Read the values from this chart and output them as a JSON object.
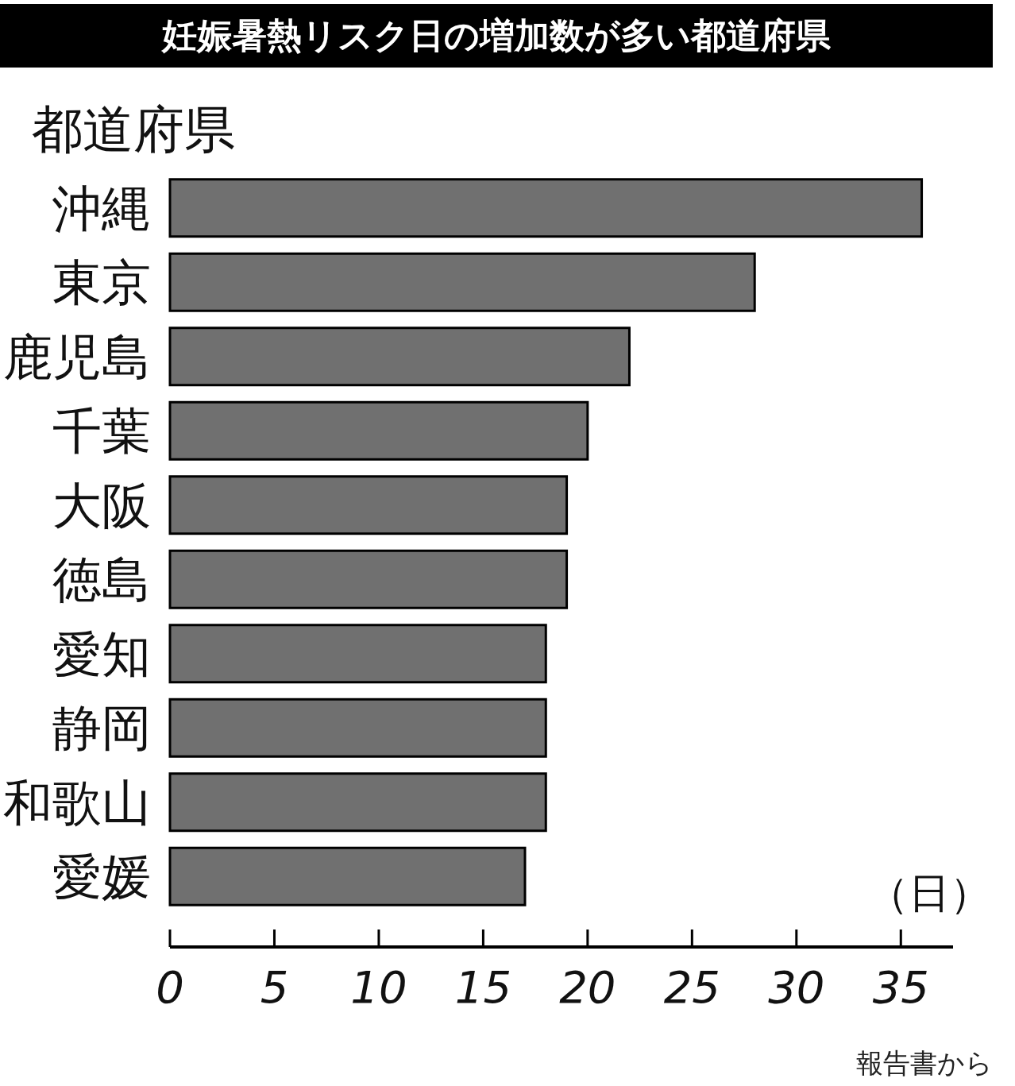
{
  "chart_data": {
    "type": "bar",
    "orientation": "horizontal",
    "title": "妊娠暑熱リスク日の増加数が多い都道府県",
    "ylabel": "都道府県",
    "xlabel": "（日）",
    "categories": [
      "沖縄",
      "東京",
      "鹿児島",
      "千葉",
      "大阪",
      "徳島",
      "愛知",
      "静岡",
      "和歌山",
      "愛媛"
    ],
    "values": [
      36,
      28,
      22,
      20,
      19,
      19,
      18,
      18,
      18,
      17
    ],
    "color": "#707070",
    "xlim": [
      0,
      37.5
    ],
    "xticks": [
      0,
      5,
      10,
      15,
      20,
      25,
      30,
      35
    ],
    "annotations": [
      "報告書から"
    ]
  }
}
